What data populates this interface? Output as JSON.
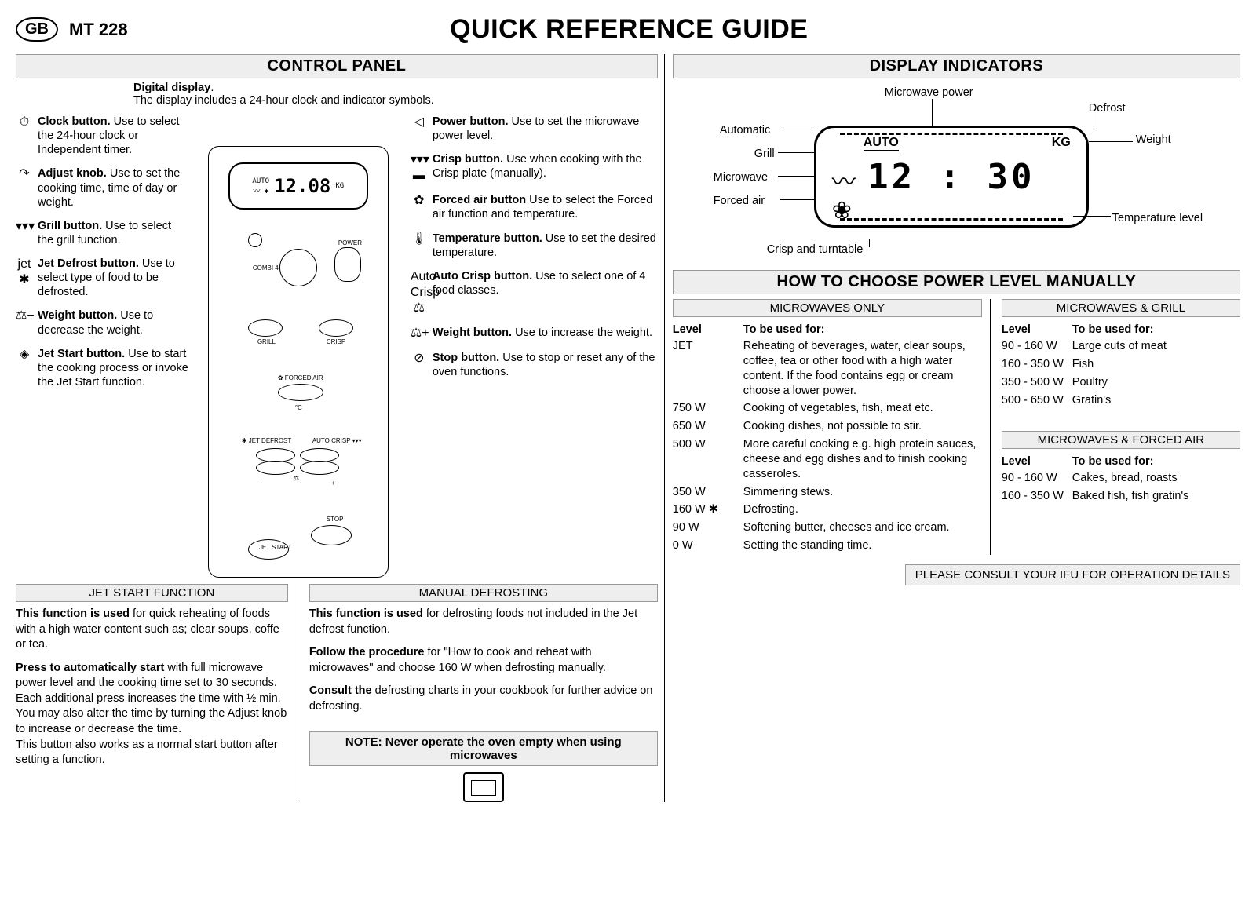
{
  "header": {
    "badge": "GB",
    "model": "MT 228",
    "title": "QUICK REFERENCE GUIDE"
  },
  "sections": {
    "control_panel": "CONTROL PANEL",
    "display_indicators": "DISPLAY INDICATORS",
    "power_level": "HOW TO CHOOSE POWER LEVEL MANUALLY",
    "jet_start": "JET START FUNCTION",
    "manual_defrost": "MANUAL DEFROSTING",
    "mw_only": "MICROWAVES ONLY",
    "mw_grill": "MICROWAVES & GRILL",
    "mw_forced": "MICROWAVES & FORCED AIR"
  },
  "digital": {
    "title": "Digital display",
    "desc": "The display includes a 24-hour clock and indicator symbols."
  },
  "left_labels": [
    {
      "icon": "⏱",
      "title": "Clock button.",
      "desc": "Use to select the 24-hour clock or Independent timer."
    },
    {
      "icon": "↷",
      "title": "Adjust knob.",
      "desc": "Use to set the cooking time, time of day or weight."
    },
    {
      "icon": "▾▾▾",
      "title": "Grill button.",
      "desc": "Use to select the grill function."
    },
    {
      "icon": "jet ✱",
      "title": "Jet Defrost button.",
      "desc": "Use to select type of food to be defrosted."
    },
    {
      "icon": "⚖−",
      "title": "Weight button.",
      "desc": "Use to decrease the weight."
    },
    {
      "icon": "◈",
      "title": "Jet Start button.",
      "desc": "Use to start the cooking process or invoke the Jet Start function."
    }
  ],
  "right_labels": [
    {
      "icon": "◁",
      "title": "Power button.",
      "desc": "Use to set the microwave power level."
    },
    {
      "icon": "▾▾▾ ▬",
      "title": "Crisp button.",
      "desc": "Use when cooking with the Crisp plate (manually)."
    },
    {
      "icon": "✿",
      "title": "Forced air button",
      "desc": "Use to select the Forced air function and temperature."
    },
    {
      "icon": "🌡",
      "title": "Temperature button.",
      "desc": "Use to set the desired temperature."
    },
    {
      "icon": "Auto Crisp ⚖",
      "title": "Auto Crisp button.",
      "desc": "Use to select one of 4 food classes."
    },
    {
      "icon": "⚖+",
      "title": "Weight button.",
      "desc": "Use to increase the weight."
    },
    {
      "icon": "⊘",
      "title": "Stop button.",
      "desc": "Use to stop or reset any of the oven functions."
    }
  ],
  "panel_display": "12.08",
  "indicators": {
    "left": [
      "Automatic",
      "Grill",
      "Microwave",
      "Forced air"
    ],
    "top": [
      "Microwave power",
      "Defrost"
    ],
    "right": [
      "Weight",
      "Temperature level"
    ],
    "bottom": "Crisp and turntable",
    "auto": "AUTO",
    "kg": "KG",
    "time": "12 : 30"
  },
  "jet_start_paras": [
    {
      "b": "This function is used",
      "t": " for quick reheating of foods with a high water content such as; clear soups, coffe or tea."
    },
    {
      "b": "Press to automatically start",
      "t": " with full microwave power level and the cooking time set to 30 seconds. Each additional press increases the time with ½ min. You may also alter the time by turning the Adjust knob to increase or decrease the time.\nThis button also works as a normal start button after setting a function."
    }
  ],
  "defrost_paras": [
    {
      "b": "This function is used",
      "t": " for defrosting foods not included in the Jet defrost function."
    },
    {
      "b": "Follow the procedure",
      "t": " for \"How to cook and reheat with microwaves\" and choose 160 W when defrosting manually."
    },
    {
      "b": "Consult the",
      "t": " defrosting charts in your cookbook for further advice on defrosting."
    }
  ],
  "table_headers": {
    "level": "Level",
    "use": "To be used for:"
  },
  "mw_only_rows": [
    {
      "lv": "JET",
      "use": "Reheating of beverages, water, clear soups, coffee, tea or other food with a high water content. If the food contains egg or cream choose a lower power."
    },
    {
      "lv": "750 W",
      "use": "Cooking of vegetables, fish, meat etc."
    },
    {
      "lv": "650 W",
      "use": "Cooking dishes, not possible to stir."
    },
    {
      "lv": "500 W",
      "use": "More careful cooking e.g. high protein sauces, cheese and egg dishes and to finish cooking casseroles."
    },
    {
      "lv": "350 W",
      "use": "Simmering stews."
    },
    {
      "lv": "160 W  ✱",
      "use": "Defrosting."
    },
    {
      "lv": "90 W",
      "use": "Softening butter, cheeses and ice cream."
    },
    {
      "lv": "0 W",
      "use": "Setting the standing time."
    }
  ],
  "mw_grill_rows": [
    {
      "lv": "90 - 160 W",
      "use": "Large cuts of meat"
    },
    {
      "lv": "160 - 350 W",
      "use": "Fish"
    },
    {
      "lv": "350 - 500 W",
      "use": "Poultry"
    },
    {
      "lv": "500 - 650 W",
      "use": "Gratin's"
    }
  ],
  "mw_forced_rows": [
    {
      "lv": "90 - 160 W",
      "use": "Cakes, bread, roasts"
    },
    {
      "lv": "160 - 350 W",
      "use": "Baked fish, fish gratin's"
    }
  ],
  "note": "NOTE: Never operate the oven empty when using microwaves",
  "ifu": "PLEASE CONSULT YOUR IFU FOR OPERATION DETAILS"
}
